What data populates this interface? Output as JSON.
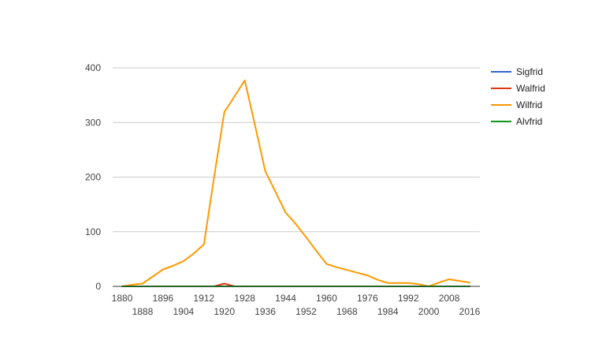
{
  "chart_data": {
    "type": "line",
    "x": [
      1880,
      1884,
      1888,
      1892,
      1896,
      1900,
      1904,
      1908,
      1912,
      1916,
      1920,
      1924,
      1928,
      1932,
      1936,
      1940,
      1944,
      1948,
      1952,
      1956,
      1960,
      1964,
      1968,
      1972,
      1976,
      1980,
      1984,
      1988,
      1992,
      1996,
      2000,
      2004,
      2008,
      2012,
      2016
    ],
    "x_ticks": [
      "1880",
      "1888",
      "1896",
      "1904",
      "1912",
      "1920",
      "1928",
      "1936",
      "1944",
      "1952",
      "1960",
      "1968",
      "1976",
      "1984",
      "1992",
      "2000",
      "2008",
      "2016"
    ],
    "series": [
      {
        "name": "Sigfrid",
        "color": "#3366cc",
        "values": [
          0,
          0,
          0,
          0,
          0,
          0,
          0,
          0,
          0,
          0,
          0,
          0,
          0,
          0,
          0,
          0,
          0,
          0,
          0,
          0,
          0,
          0,
          0,
          0,
          0,
          0,
          0,
          0,
          0,
          0,
          0,
          0,
          0,
          0,
          0
        ]
      },
      {
        "name": "Walfrid",
        "color": "#dc3912",
        "values": [
          0,
          0,
          0,
          0,
          0,
          0,
          0,
          0,
          0,
          0,
          5,
          0,
          0,
          0,
          0,
          0,
          0,
          0,
          0,
          0,
          0,
          0,
          0,
          0,
          0,
          0,
          0,
          0,
          0,
          0,
          0,
          0,
          0,
          0,
          0
        ]
      },
      {
        "name": "Wilfrid",
        "color": "#ff9900",
        "values": [
          0,
          3,
          5,
          18,
          31,
          38,
          46,
          60,
          77,
          200,
          319,
          348,
          377,
          295,
          211,
          173,
          135,
          114,
          90,
          65,
          41,
          35,
          30,
          25,
          20,
          12,
          6,
          6,
          6,
          4,
          0,
          7,
          13,
          10,
          7
        ]
      },
      {
        "name": "Alvfrid",
        "color": "#109618",
        "values": [
          0,
          0,
          0,
          0,
          0,
          0,
          0,
          0,
          0,
          0,
          0,
          0,
          0,
          0,
          0,
          0,
          0,
          0,
          0,
          0,
          0,
          0,
          0,
          0,
          0,
          0,
          0,
          0,
          0,
          0,
          0,
          0,
          0,
          0,
          0
        ]
      }
    ],
    "y_ticks": [
      0,
      100,
      200,
      300,
      400
    ],
    "ylim": [
      0,
      400
    ],
    "xlim": [
      1880,
      2016
    ],
    "grid": true,
    "legend_position": "right",
    "title": "",
    "xlabel": "",
    "ylabel": ""
  }
}
